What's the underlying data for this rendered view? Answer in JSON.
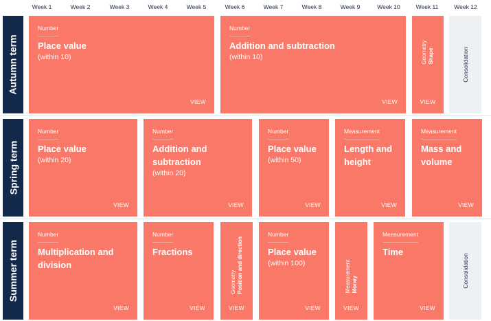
{
  "weeks": [
    "Week 1",
    "Week 2",
    "Week 3",
    "Week 4",
    "Week 5",
    "Week 6",
    "Week 7",
    "Week 8",
    "Week 9",
    "Week 10",
    "Week 11",
    "Week 12"
  ],
  "view_label": "VIEW",
  "consolidation_label": "Consolidation",
  "colors": {
    "block": "#fa7868",
    "term": "#13294b",
    "consolidation": "#eef1f4"
  },
  "terms": [
    {
      "label": "Autumn term",
      "blocks": [
        {
          "category": "Number",
          "title": "Place value",
          "subtitle": "(within 10)"
        },
        {
          "category": "Number",
          "title": "Addition and subtraction",
          "subtitle": "(within 10)"
        },
        {
          "category": "Geometry",
          "title": "Shape",
          "subtitle": ""
        }
      ]
    },
    {
      "label": "Spring term",
      "blocks": [
        {
          "category": "Number",
          "title": "Place value",
          "subtitle": "(within 20)"
        },
        {
          "category": "Number",
          "title": "Addition and subtraction",
          "subtitle": "(within 20)"
        },
        {
          "category": "Number",
          "title": "Place value",
          "subtitle": "(within 50)"
        },
        {
          "category": "Measurement",
          "title": "Length and height",
          "subtitle": ""
        },
        {
          "category": "Measurement",
          "title": "Mass and volume",
          "subtitle": ""
        }
      ]
    },
    {
      "label": "Summer term",
      "blocks": [
        {
          "category": "Number",
          "title": "Multiplication and division",
          "subtitle": ""
        },
        {
          "category": "Number",
          "title": "Fractions",
          "subtitle": ""
        },
        {
          "category": "Geometry",
          "title": "Position and direction",
          "subtitle": ""
        },
        {
          "category": "Number",
          "title": "Place value",
          "subtitle": "(within 100)"
        },
        {
          "category": "Measurement",
          "title": "Money",
          "subtitle": ""
        },
        {
          "category": "Measurement",
          "title": "Time",
          "subtitle": ""
        }
      ]
    }
  ]
}
